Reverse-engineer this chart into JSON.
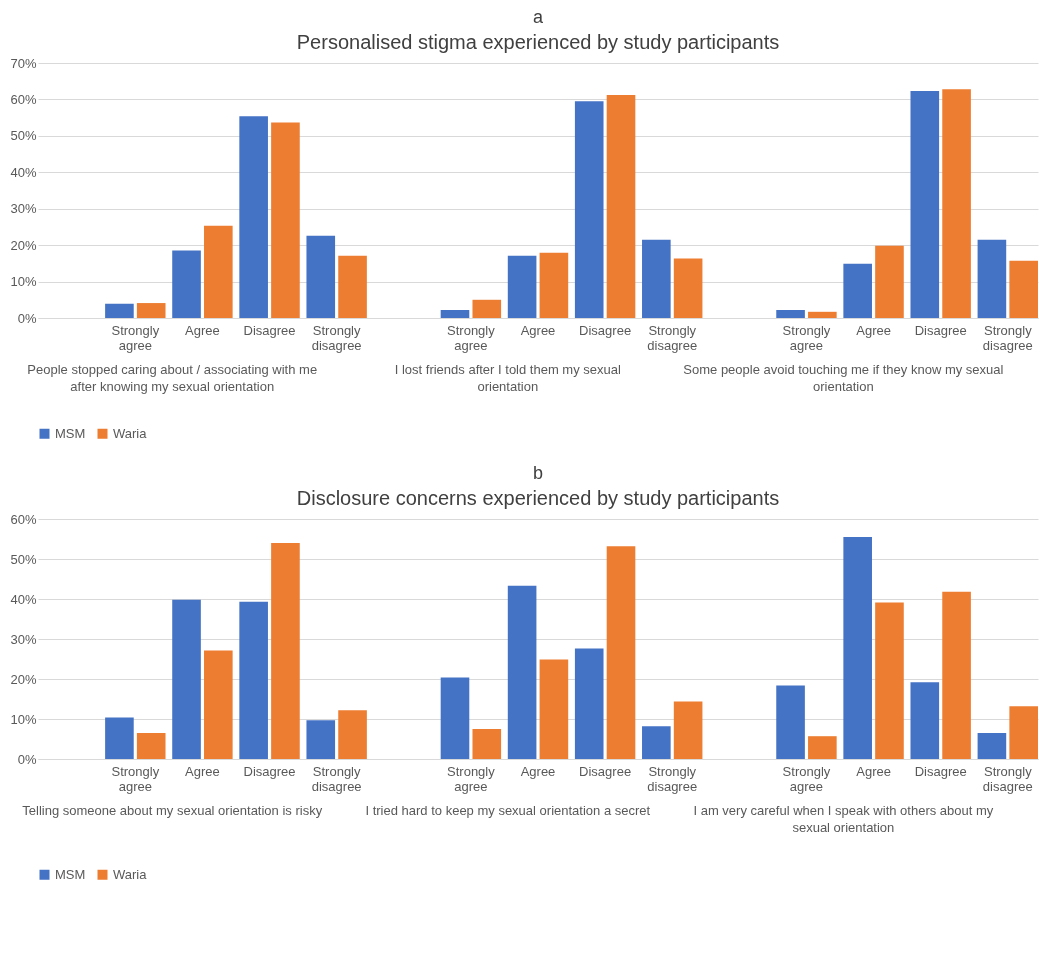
{
  "chart_data": [
    {
      "type": "bar",
      "title": "a",
      "subtitle": "Personalised stigma experienced by  study participants",
      "categories": [
        null,
        "Strongly agree",
        "Agree",
        "Disagree",
        "Strongly disagree",
        null,
        "Strongly agree",
        "Agree",
        "Disagree",
        "Strongly disagree",
        null,
        "Strongly agree",
        "Agree",
        "Disagree",
        "Strongly disagree"
      ],
      "series": [
        {
          "name": "MSM",
          "color": "#4472c4",
          "values": [
            null,
            3.9,
            18.5,
            55.4,
            22.6,
            null,
            2.2,
            17.1,
            59.5,
            21.5,
            null,
            2.2,
            14.9,
            62.3,
            21.5
          ]
        },
        {
          "name": "Waria",
          "color": "#ed7d31",
          "values": [
            null,
            4.1,
            25.3,
            53.7,
            17.1,
            null,
            5.0,
            17.9,
            61.2,
            16.3,
            null,
            1.7,
            19.8,
            62.8,
            15.7
          ]
        }
      ],
      "ylim": [
        0,
        70
      ],
      "yticks": [
        {
          "value": 0,
          "label": "0%"
        },
        {
          "value": 10,
          "label": "10%"
        },
        {
          "value": 20,
          "label": "20%"
        },
        {
          "value": 30,
          "label": "30%"
        },
        {
          "value": 40,
          "label": "40%"
        },
        {
          "value": 50,
          "label": "50%"
        },
        {
          "value": 60,
          "label": "60%"
        },
        {
          "value": 70,
          "label": "70%"
        }
      ],
      "grid": "y",
      "legend": "bottom",
      "annotations": [
        "People stopped caring about / associating with me after knowing my sexual orientation",
        "I lost friends after I told them my sexual orientation",
        "Some people avoid touching me if they know my sexual orientation"
      ]
    },
    {
      "type": "bar",
      "title": "b",
      "subtitle": "Disclosure concerns experienced by study participants",
      "categories": [
        null,
        "Strongly agree",
        "Agree",
        "Disagree",
        "Strongly disagree",
        null,
        "Strongly agree",
        "Agree",
        "Disagree",
        "Strongly disagree",
        null,
        "Strongly agree",
        "Agree",
        "Disagree",
        "Strongly disagree"
      ],
      "series": [
        {
          "name": "MSM",
          "color": "#4472c4",
          "values": [
            null,
            10.4,
            39.8,
            39.3,
            9.7,
            null,
            20.4,
            43.3,
            27.6,
            8.2,
            null,
            18.4,
            55.5,
            19.2,
            6.5
          ]
        },
        {
          "name": "Waria",
          "color": "#ed7d31",
          "values": [
            null,
            6.5,
            27.1,
            54.0,
            12.2,
            null,
            7.5,
            24.9,
            53.2,
            14.4,
            null,
            5.7,
            39.1,
            41.8,
            13.2
          ]
        }
      ],
      "ylim": [
        0,
        60
      ],
      "yticks": [
        {
          "value": 0,
          "label": "0%"
        },
        {
          "value": 10,
          "label": "10%"
        },
        {
          "value": 20,
          "label": "20%"
        },
        {
          "value": 30,
          "label": "30%"
        },
        {
          "value": 40,
          "label": "40%"
        },
        {
          "value": 50,
          "label": "50%"
        },
        {
          "value": 60,
          "label": "60%"
        }
      ],
      "grid": "y",
      "legend": "bottom",
      "annotations": [
        "Telling someone about my sexual orientation is risky",
        "I tried hard to keep my sexual orientation a secret",
        "I am very careful when I speak with others about my sexual orientation"
      ]
    }
  ]
}
